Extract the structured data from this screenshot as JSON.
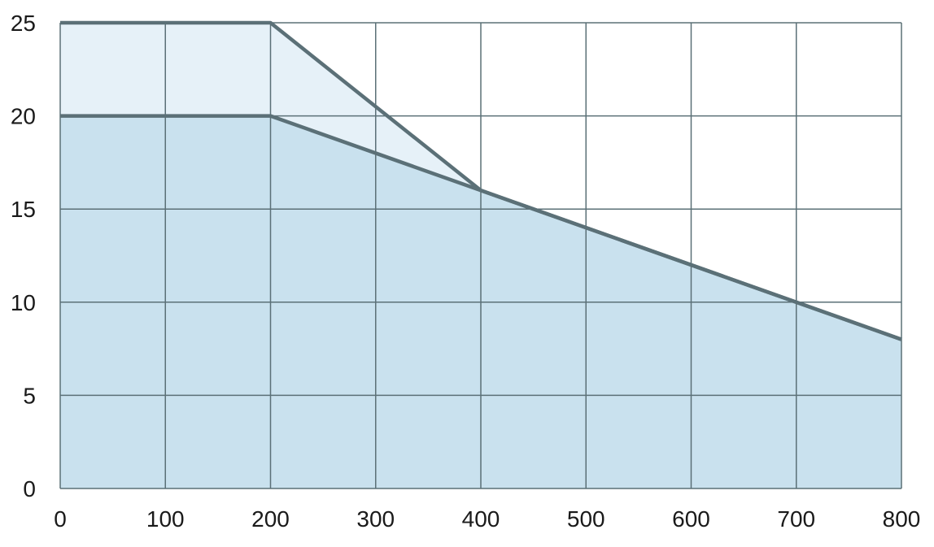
{
  "chart_data": {
    "type": "area",
    "title": "",
    "xlabel": "",
    "ylabel": "",
    "xlim": [
      0,
      800
    ],
    "ylim": [
      0,
      25
    ],
    "x_ticks": [
      0,
      100,
      200,
      300,
      400,
      500,
      600,
      700,
      800
    ],
    "y_ticks": [
      0,
      5,
      10,
      15,
      20,
      25
    ],
    "x_tick_labels": [
      "0",
      "100",
      "200",
      "300",
      "400",
      "500",
      "600",
      "700",
      "800"
    ],
    "y_tick_labels": [
      "0",
      "5",
      "10",
      "15",
      "20",
      "25"
    ],
    "grid": true,
    "legend": "none",
    "series": [
      {
        "x": [
          0,
          200,
          400,
          800
        ],
        "y": [
          25,
          25,
          16,
          8
        ],
        "fill_color": "#e6f1f8"
      },
      {
        "x": [
          0,
          200,
          400,
          800
        ],
        "y": [
          20,
          20,
          16,
          8
        ],
        "fill_color": "#c9e1ee"
      }
    ],
    "line_color": "#5b7077",
    "grid_color": "#5b7077"
  }
}
